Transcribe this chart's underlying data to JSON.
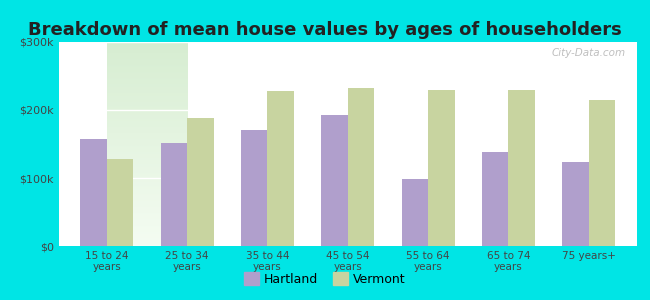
{
  "title": "Breakdown of mean house values by ages of householders",
  "categories": [
    "15 to 24\nyears",
    "25 to 34\nyears",
    "35 to 44\nyears",
    "45 to 54\nyears",
    "55 to 64\nyears",
    "65 to 74\nyears",
    "75 years+"
  ],
  "hartland_values": [
    158000,
    152000,
    170000,
    193000,
    98000,
    138000,
    123000
  ],
  "vermont_values": [
    128000,
    188000,
    228000,
    233000,
    230000,
    230000,
    215000
  ],
  "hartland_color": "#b09fcc",
  "vermont_color": "#c8d4a0",
  "background_top": "#d8edd0",
  "background_bottom": "#f0faf0",
  "outer_background": "#00e5e5",
  "ylim": [
    0,
    300000
  ],
  "yticks": [
    0,
    100000,
    200000,
    300000
  ],
  "ytick_labels": [
    "$0",
    "$100k",
    "$200k",
    "$300k"
  ],
  "title_fontsize": 13,
  "legend_labels": [
    "Hartland",
    "Vermont"
  ],
  "watermark": "City-Data.com"
}
